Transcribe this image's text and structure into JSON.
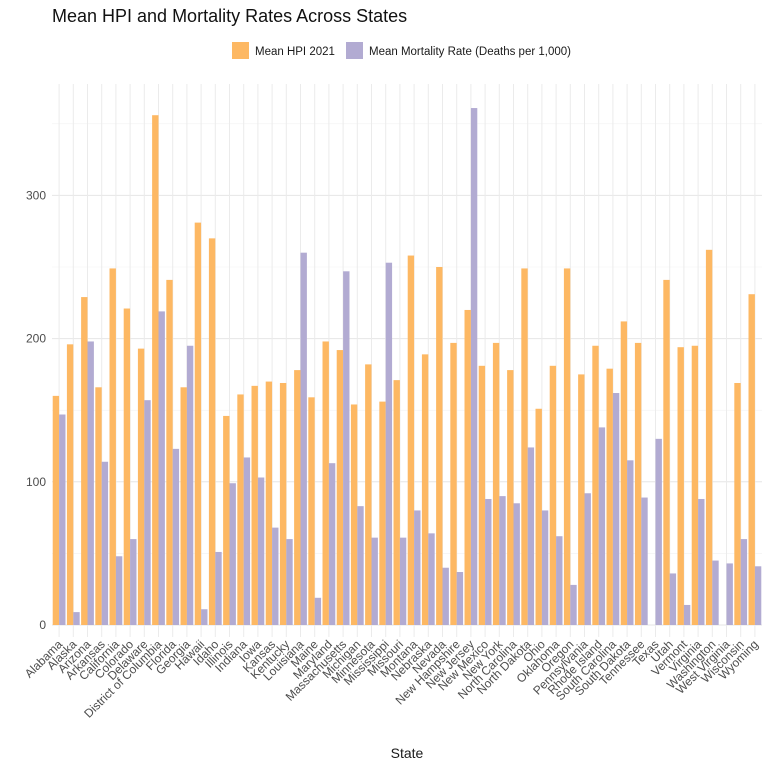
{
  "chart_data": {
    "type": "bar",
    "title": "Mean HPI and Mortality Rates Across States",
    "xlabel": "State",
    "ylabel": "",
    "ylim": [
      0,
      370
    ],
    "yticks": [
      0,
      100,
      200,
      300
    ],
    "grid": true,
    "legend_position": "top",
    "categories": [
      "Alabama",
      "Alaska",
      "Arizona",
      "Arkansas",
      "California",
      "Colorado",
      "Delaware",
      "District of Columbia",
      "Florida",
      "Georgia",
      "Hawaii",
      "Idaho",
      "Illinois",
      "Indiana",
      "Iowa",
      "Kansas",
      "Kentucky",
      "Louisiana",
      "Maine",
      "Maryland",
      "Massachusetts",
      "Michigan",
      "Minnesota",
      "Mississippi",
      "Missouri",
      "Montana",
      "Nebraska",
      "Nevada",
      "New Hampshire",
      "New Jersey",
      "New Mexico",
      "New York",
      "North Carolina",
      "North Dakota",
      "Ohio",
      "Oklahoma",
      "Oregon",
      "Pennsylvania",
      "Rhode Island",
      "South Carolina",
      "South Dakota",
      "Tennessee",
      "Texas",
      "Utah",
      "Vermont",
      "Virginia",
      "Washington",
      "West Virginia",
      "Wisconsin",
      "Wyoming"
    ],
    "series": [
      {
        "name": "Mean HPI 2021",
        "color": "#FDB863",
        "values": [
          160,
          196,
          229,
          166,
          249,
          221,
          193,
          356,
          241,
          166,
          281,
          270,
          146,
          161,
          167,
          170,
          169,
          178,
          159,
          198,
          192,
          154,
          182,
          156,
          171,
          258,
          189,
          250,
          197,
          220,
          181,
          197,
          178,
          249,
          151,
          181,
          249,
          175,
          195,
          179,
          212,
          197,
          null,
          241,
          194,
          195,
          262,
          null,
          169,
          231
        ]
      },
      {
        "name": "Mean Mortality Rate (Deaths per 1,000)",
        "color": "#B2ABD2",
        "values": [
          147,
          9,
          198,
          114,
          48,
          60,
          157,
          219,
          123,
          195,
          11,
          51,
          99,
          117,
          103,
          68,
          60,
          260,
          19,
          113,
          247,
          83,
          61,
          253,
          61,
          80,
          64,
          40,
          37,
          361,
          88,
          90,
          85,
          124,
          80,
          62,
          28,
          92,
          138,
          162,
          115,
          89,
          130,
          36,
          14,
          88,
          45,
          43,
          60,
          41
        ]
      }
    ]
  }
}
